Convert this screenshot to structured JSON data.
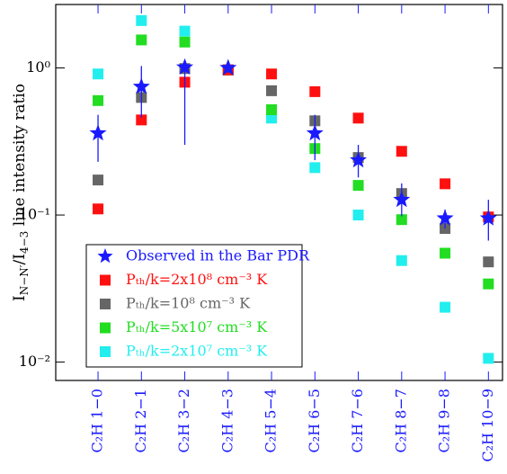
{
  "chart_data": {
    "type": "scatter",
    "y_label_parts": [
      "I",
      "N−N′",
      "/I",
      "4−3",
      "  line intensity ratio"
    ],
    "categories": [
      "C₂H 1−0",
      "C₂H 2−1",
      "C₂H 3−2",
      "C₂H 4−3",
      "C₂H 5−4",
      "C₂H 6−5",
      "C₂H 7−6",
      "C₂H 8−7",
      "C₂H 9−8",
      "C₂H 10−9"
    ],
    "category_color": "#1a1aff",
    "log_y": true,
    "ylim": [
      0.0075,
      2.7
    ],
    "yticks": [
      {
        "value": 1,
        "label": "10⁰"
      },
      {
        "value": 0.1,
        "label": "10⁻¹"
      },
      {
        "value": 0.01,
        "label": "10⁻²"
      }
    ],
    "legend": "lower left",
    "series": [
      {
        "name": "Observed in the Bar PDR",
        "color": "#1a1aff",
        "marker": "star",
        "values": [
          0.36,
          0.745,
          1.01,
          1.0,
          null,
          0.36,
          0.236,
          0.127,
          0.095,
          0.095
        ],
        "lower": [
          0.23,
          0.46,
          0.3,
          0.93,
          null,
          0.236,
          0.18,
          0.098,
          0.081,
          0.067
        ],
        "upper": [
          0.48,
          1.03,
          1.12,
          1.04,
          null,
          0.48,
          0.3,
          0.164,
          0.109,
          0.127
        ]
      },
      {
        "name": "Pₜₕ/k=2x10⁸ cm⁻³ K",
        "color": "#ff1010",
        "marker": "square",
        "values": [
          0.11,
          0.443,
          0.8,
          0.97,
          0.91,
          0.69,
          0.456,
          0.271,
          0.163,
          0.097
        ]
      },
      {
        "name": "Pₜₕ/k=10⁸ cm⁻³ K",
        "color": "#666666",
        "marker": "square",
        "values": [
          0.173,
          0.63,
          0.99,
          0.97,
          0.7,
          0.437,
          0.246,
          0.14,
          0.081,
          0.048
        ]
      },
      {
        "name": "Pₜₕ/k=5x10⁷ cm⁻³ K",
        "color": "#22dd22",
        "marker": "square",
        "values": [
          0.6,
          1.55,
          1.5,
          0.97,
          0.52,
          0.283,
          0.159,
          0.093,
          0.055,
          0.034
        ]
      },
      {
        "name": "Pₜₕ/k=2x10⁷ cm⁻³ K",
        "color": "#22eeee",
        "marker": "square",
        "values": [
          0.91,
          2.1,
          1.78,
          0.97,
          0.456,
          0.21,
          0.1,
          0.049,
          0.0236,
          0.0106
        ]
      }
    ]
  }
}
